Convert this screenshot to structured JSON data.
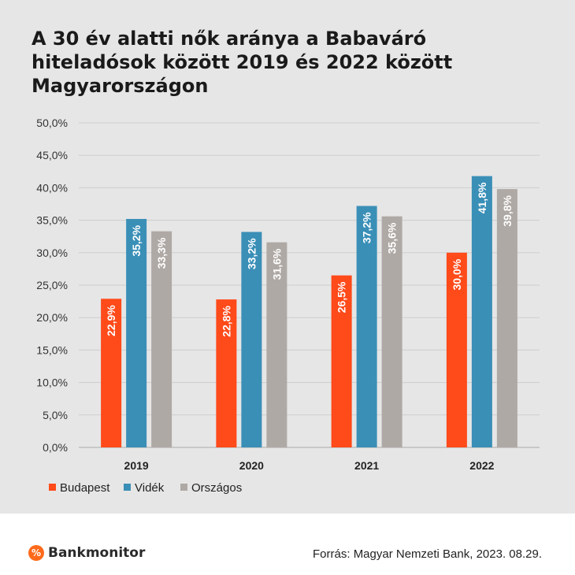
{
  "chart_data": {
    "type": "bar",
    "title": "A 30 év alatti nők aránya a Babaváró hiteladósok között 2019 és 2022 között Magyarországon",
    "categories": [
      "2019",
      "2020",
      "2021",
      "2022"
    ],
    "series": [
      {
        "name": "Budapest",
        "color": "#ff4a1a",
        "values": [
          22.9,
          22.8,
          26.5,
          30.0
        ],
        "labels": [
          "22,9%",
          "22,8%",
          "26,5%",
          "30,0%"
        ]
      },
      {
        "name": "Vidék",
        "color": "#3a8fb7",
        "values": [
          35.2,
          33.2,
          37.2,
          41.8
        ],
        "labels": [
          "35,2%",
          "33,2%",
          "37,2%",
          "41,8%"
        ]
      },
      {
        "name": "Országos",
        "color": "#afa9a5",
        "values": [
          33.3,
          31.6,
          35.6,
          39.8
        ],
        "labels": [
          "33,3%",
          "31,6%",
          "35,6%",
          "39,8%"
        ]
      }
    ],
    "ylim": [
      0,
      50
    ],
    "yticks": [
      0,
      5,
      10,
      15,
      20,
      25,
      30,
      35,
      40,
      45,
      50
    ],
    "ytick_labels": [
      "0,0%",
      "5,0%",
      "10,0%",
      "15,0%",
      "20,0%",
      "25,0%",
      "30,0%",
      "35,0%",
      "40,0%",
      "45,0%",
      "50,0%"
    ],
    "grid": true,
    "legend_position": "bottom-left"
  },
  "footer": {
    "logo_mark": "%",
    "logo_text": "Bankmonitor",
    "source": "Forrás: Magyar Nemzeti Bank, 2023. 08.29."
  }
}
